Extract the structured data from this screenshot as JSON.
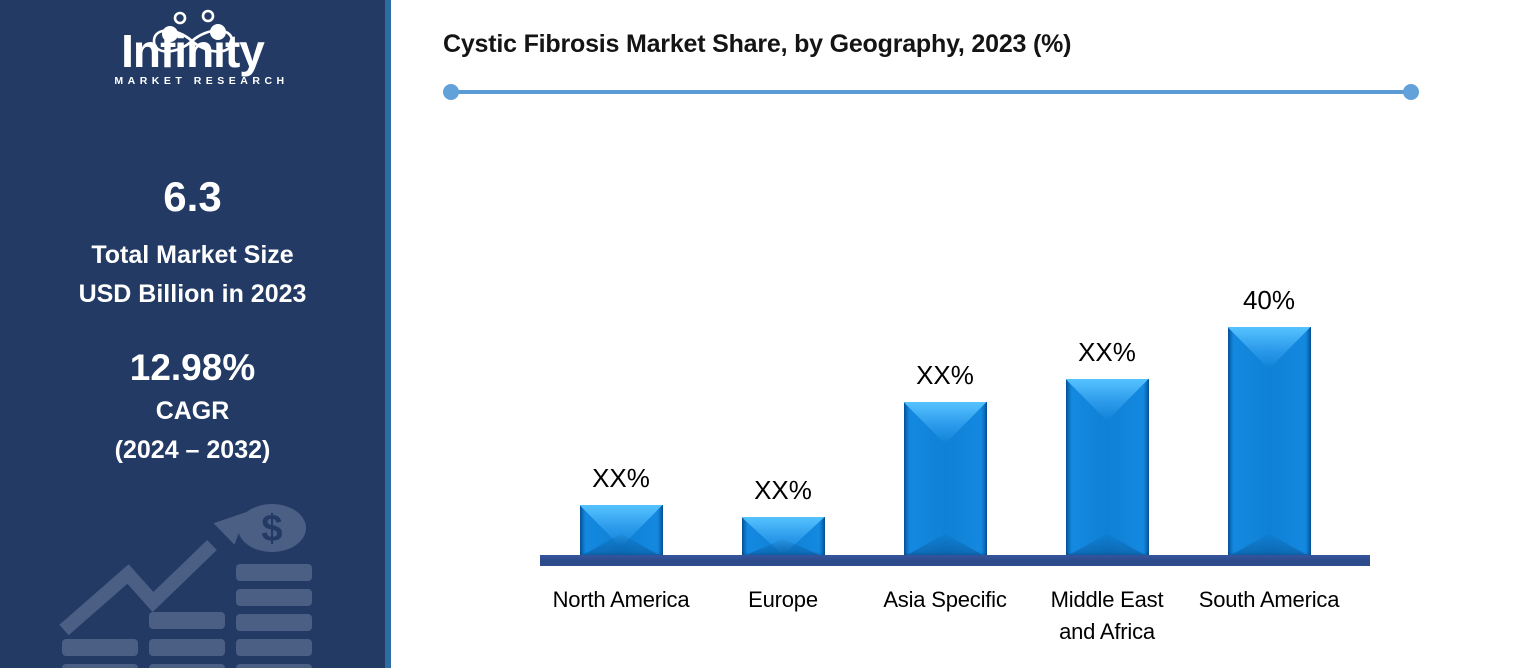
{
  "header": {
    "title": "Cystic Fibrosis Market Share, by Geography, 2023 (%)"
  },
  "sidebar": {
    "logo_title": "Infinity",
    "logo_subtitle": "MARKET RESEARCH",
    "market_size_value": "6.3",
    "market_size_label_line1": "Total Market Size",
    "market_size_label_line2": "USD Billion in 2023",
    "cagr_value": "12.98%",
    "cagr_label": "CAGR",
    "cagr_period": "(2024 – 2032)"
  },
  "chart_data": {
    "type": "bar",
    "title": "Cystic Fibrosis Market Share, by Geography, 2023 (%)",
    "categories": [
      "North America",
      "Europe",
      "Asia Specific",
      "Middle East\nand Africa",
      "South America"
    ],
    "value_labels": [
      "XX%",
      "XX%",
      "XX%",
      "XX%",
      "40%"
    ],
    "values_estimated_pct": [
      9,
      7,
      27,
      31,
      40
    ],
    "ylabel": "",
    "xlabel": "",
    "ylim": [
      0,
      45
    ],
    "grid": false,
    "legend": false,
    "bar_color": "#0f81d6",
    "bar_bevel_light": "#55c3ff",
    "axis_color": "#2e4d8f"
  },
  "colors": {
    "sidebar_bg": "#223a64",
    "sidebar_border": "#2e6da4",
    "divider": "#5b9bd5",
    "watermark": "#4b5e84",
    "title_text": "#141414"
  },
  "icons": {
    "infinity_logo": "infinity-loop-with-people",
    "watermark_graphic": "growth-arrow-coin-stacks-dollar"
  }
}
